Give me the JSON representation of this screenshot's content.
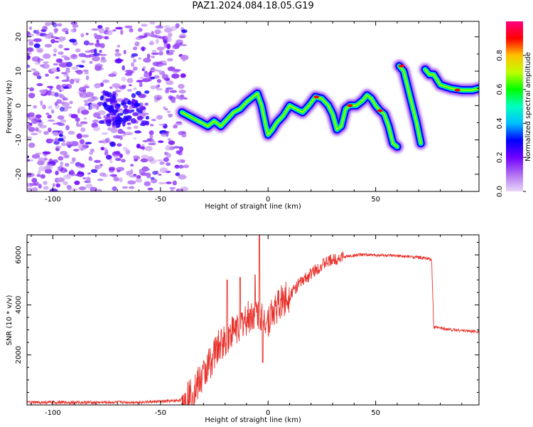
{
  "title": "PAZ1.2024.084.18.05.G19",
  "chart_data": [
    {
      "type": "heatmap",
      "xlabel": "Height of straight line (km)",
      "ylabel": "Frequency (Hz)",
      "xlim": [
        -112,
        98
      ],
      "ylim": [
        -25,
        24.5
      ],
      "x_ticks": [
        -100,
        -50,
        0,
        50
      ],
      "y_ticks": [
        -20,
        -10,
        0,
        10,
        20
      ],
      "colorbar": {
        "label": "Normalized spectral amplitude",
        "range": [
          0,
          1
        ],
        "ticks": [
          "0.0",
          "0.2",
          "0.4",
          "0.6",
          "0.8"
        ],
        "colormap": [
          "#e8d8f8",
          "#b070f0",
          "#7000ff",
          "#0000ff",
          "#00c0ff",
          "#00ffc0",
          "#00ff00",
          "#c0ff00",
          "#ffc000",
          "#ff0000",
          "#ff0080"
        ]
      },
      "noise_region": {
        "x": [
          -112,
          -38
        ],
        "y": [
          -25,
          24.5
        ],
        "amplitude": [
          0.05,
          0.2
        ]
      },
      "ridge": {
        "x": [
          -40,
          -37,
          -34,
          -31,
          -28,
          -25,
          -22,
          -19,
          -16,
          -13,
          -10,
          -7,
          -5,
          -3,
          -1,
          0,
          2,
          4,
          7,
          10,
          13,
          16,
          19,
          22,
          25,
          28,
          30,
          32,
          34,
          36,
          38,
          41,
          44,
          46,
          48,
          50,
          52,
          54,
          56,
          58,
          60
        ],
        "y": [
          -2,
          -3,
          -4,
          -5,
          -6,
          -4.5,
          -6,
          -4,
          -2,
          -1,
          1,
          2.5,
          3.5,
          0,
          -6,
          -8.5,
          -7,
          -5,
          -3,
          0,
          -1,
          -2,
          0,
          2.5,
          2,
          0,
          -2.5,
          -7,
          -6,
          -1,
          0,
          0,
          1.5,
          3,
          2,
          0,
          -1.5,
          -2.5,
          -6,
          -11,
          -12
        ]
      },
      "segments": [
        {
          "x": [
            61,
            63,
            65,
            67,
            69,
            71
          ],
          "y": [
            11.5,
            10,
            5,
            0,
            -5,
            -11
          ]
        },
        {
          "x": [
            73,
            75,
            77,
            80,
            85,
            90,
            95,
            98
          ],
          "y": [
            10.5,
            9,
            9,
            6,
            5,
            4.5,
            4.5,
            5
          ]
        }
      ],
      "peak_markers": [
        {
          "x": 22.5,
          "y": 2.5
        },
        {
          "x": 38,
          "y": 0
        },
        {
          "x": 52,
          "y": -1.5
        },
        {
          "x": 62,
          "y": 11.5
        },
        {
          "x": 88,
          "y": 4.5
        }
      ]
    },
    {
      "type": "line",
      "xlabel": "Height of straight line (km)",
      "ylabel": "SNR (10 * v/v)",
      "xlim": [
        -112,
        98
      ],
      "ylim": [
        0,
        6800
      ],
      "x_ticks": [
        -100,
        -50,
        0,
        50
      ],
      "y_ticks": [
        2000,
        4000,
        6000
      ],
      "color": "#e8302a",
      "series": [
        {
          "x": [
            -112,
            -80,
            -60,
            -45,
            -40,
            -37,
            -35,
            -32,
            -30,
            -27,
            -24,
            -21,
            -18,
            -15,
            -12,
            -9,
            -6,
            -3,
            0,
            3,
            6,
            10,
            14,
            18,
            22,
            26,
            30,
            34,
            38,
            42,
            46,
            50,
            55,
            60,
            65,
            70,
            74,
            76,
            77,
            78,
            82,
            86,
            90,
            94,
            98
          ],
          "y": [
            100,
            100,
            110,
            150,
            200,
            350,
            500,
            900,
            1200,
            1700,
            2200,
            2500,
            2800,
            3100,
            3300,
            3500,
            3700,
            3600,
            3400,
            3800,
            4100,
            4400,
            4800,
            5100,
            5400,
            5650,
            5800,
            5900,
            5950,
            6000,
            6000,
            5990,
            5980,
            5950,
            5930,
            5900,
            5850,
            5800,
            3100,
            3100,
            3050,
            3000,
            2980,
            2950,
            2940
          ]
        }
      ],
      "noise": [
        {
          "x_range": [
            -112,
            -40
          ],
          "amplitude": 60
        },
        {
          "x_range": [
            -40,
            10
          ],
          "amplitude": 700
        },
        {
          "x_range": [
            10,
            35
          ],
          "amplitude": 250
        },
        {
          "x_range": [
            35,
            98
          ],
          "amplitude": 60
        }
      ],
      "spikes": [
        {
          "x": -4,
          "y": 6800
        },
        {
          "x": -19,
          "y": 5000
        },
        {
          "x": -13,
          "y": 5100
        },
        {
          "x": -6,
          "y": 5200
        },
        {
          "x": -2.5,
          "y": 1700
        }
      ]
    }
  ]
}
